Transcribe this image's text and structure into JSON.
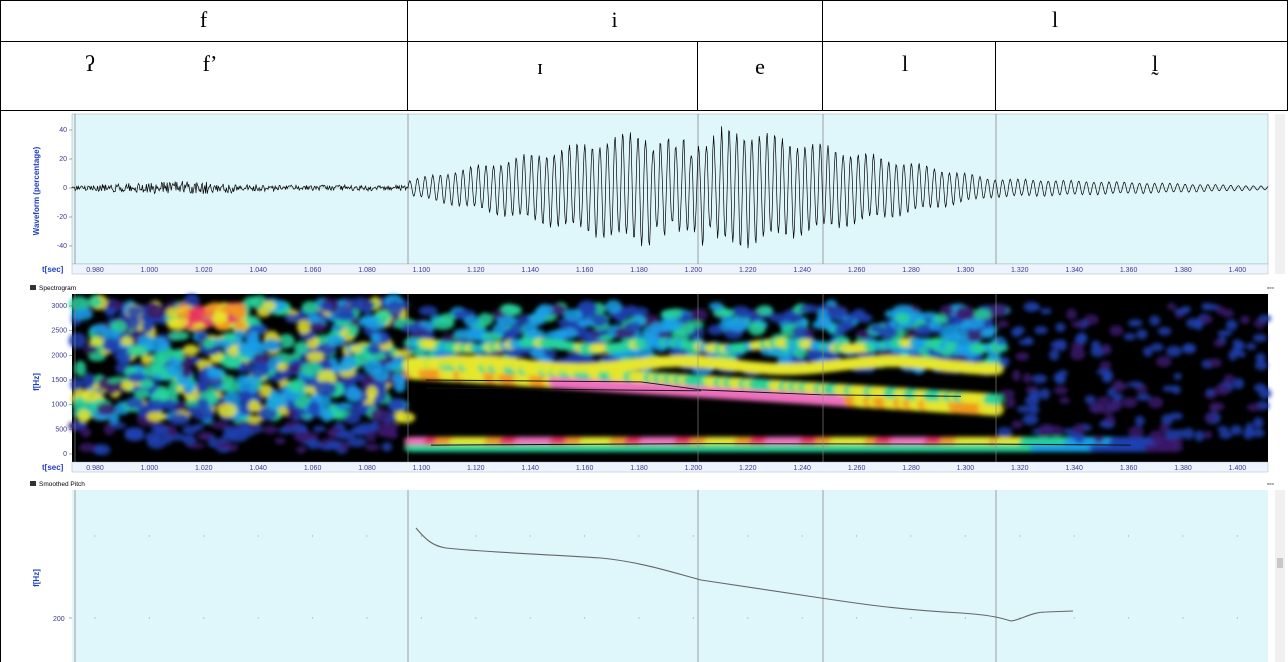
{
  "header": {
    "row1": [
      "f",
      "i",
      "l"
    ],
    "row2": [
      "ʔ",
      "fʼ",
      "ɪ",
      "e",
      "l",
      "l̰"
    ]
  },
  "waveform": {
    "ylabel": "Waveform (percentage)",
    "yticks": [
      "40",
      "20",
      "0",
      "-20",
      "-40"
    ],
    "xaxis_label": "t[sec]"
  },
  "spectrogram": {
    "title": "Spectrogram",
    "ylabel": "f[Hz]",
    "yticks": [
      "3000",
      "2500",
      "2000",
      "1500",
      "1000",
      "500",
      "0"
    ],
    "xaxis_label": "t[sec]"
  },
  "time_ticks": [
    "0.980",
    "1.000",
    "1.020",
    "1.040",
    "1.060",
    "1.080",
    "1.100",
    "1.120",
    "1.140",
    "1.160",
    "1.180",
    "1.200",
    "1.220",
    "1.240",
    "1.260",
    "1.280",
    "1.300",
    "1.320",
    "1.340",
    "1.360",
    "1.380",
    "1.400"
  ],
  "pitch": {
    "title": "Smoothed Pitch",
    "ylabel": "f[Hz]",
    "ytick": "200"
  },
  "colors": {
    "panel_bg": "#dff6fb",
    "border": "#000000",
    "axis_label": "#2040c0"
  }
}
